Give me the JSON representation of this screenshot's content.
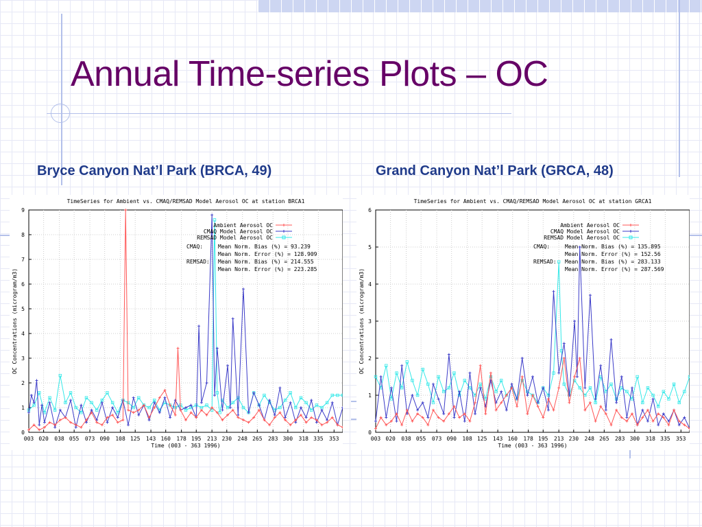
{
  "slide": {
    "title": "Annual Time-series Plots – OC"
  },
  "panels": {
    "left_label": "Bryce Canyon Nat’l Park (BRCA, 49)",
    "right_label": "Grand Canyon Nat’l Park (GRCA, 48)"
  },
  "colors": {
    "title": "#660066",
    "subtitle": "#1f3a8a",
    "ambient": "#ff5555",
    "cmaq": "#3a3ac8",
    "remsad": "#33e8e8",
    "grid": "#cccccc"
  },
  "chart_data": [
    {
      "type": "line",
      "title": "TimeSeries for Ambient vs. CMAQ/REMSAD Model Aerosol OC at station BRCA1",
      "xlabel": "Time    (003 - 363 1996)",
      "ylabel": "OC Concentrations (microgram/m3)",
      "xlim": [
        3,
        363
      ],
      "ylim": [
        0,
        9
      ],
      "y_ticks": [
        0,
        1,
        2,
        3,
        4,
        5,
        6,
        7,
        8,
        9
      ],
      "x_tick_labels": [
        "003",
        "020",
        "038",
        "055",
        "073",
        "090",
        "108",
        "125",
        "143",
        "160",
        "178",
        "195",
        "213",
        "230",
        "248",
        "265",
        "283",
        "300",
        "318",
        "335",
        "353"
      ],
      "grid": true,
      "legend_position": "top-right",
      "stats": [
        [
          "CMAQ:",
          "Mean Norm. Bias (%) = 93.239"
        ],
        [
          "",
          "Mean Norm. Error (%) = 128.909"
        ],
        [
          "REMSAD:",
          "Mean Norm. Bias (%) = 214.555"
        ],
        [
          "",
          "Mean Norm. Error (%) = 223.285"
        ]
      ],
      "series": [
        {
          "name": "Ambient Aerosol OC",
          "color": "#ff5555",
          "x": [
            3,
            9,
            15,
            21,
            27,
            33,
            39,
            45,
            51,
            57,
            63,
            69,
            75,
            81,
            87,
            93,
            99,
            105,
            111,
            114,
            117,
            123,
            129,
            135,
            141,
            147,
            153,
            159,
            165,
            171,
            174,
            177,
            183,
            189,
            195,
            201,
            207,
            213,
            219,
            225,
            231,
            237,
            243,
            249,
            255,
            261,
            267,
            273,
            279,
            285,
            291,
            297,
            303,
            309,
            315,
            321,
            327,
            333,
            339,
            345,
            351,
            357,
            363
          ],
          "y": [
            0.1,
            0.3,
            0.1,
            0.2,
            0.4,
            0.3,
            0.5,
            0.6,
            0.4,
            0.3,
            0.2,
            0.5,
            0.8,
            0.4,
            0.3,
            0.6,
            0.7,
            0.4,
            0.5,
            9.0,
            0.9,
            0.8,
            0.9,
            1.1,
            0.6,
            1.0,
            1.4,
            1.7,
            1.1,
            0.7,
            3.4,
            0.9,
            0.5,
            0.8,
            0.6,
            0.9,
            0.7,
            1.0,
            0.8,
            0.5,
            0.7,
            0.9,
            0.6,
            0.5,
            0.4,
            0.6,
            0.9,
            0.5,
            0.3,
            0.6,
            0.8,
            0.5,
            0.3,
            0.5,
            0.7,
            0.4,
            0.6,
            0.5,
            0.3,
            0.4,
            0.6,
            0.3,
            0.2
          ]
        },
        {
          "name": "CMAQ Model Aerosol OC",
          "color": "#3a3ac8",
          "x": [
            3,
            6,
            9,
            12,
            15,
            18,
            21,
            27,
            33,
            39,
            45,
            51,
            57,
            63,
            69,
            75,
            81,
            87,
            93,
            99,
            105,
            111,
            117,
            123,
            129,
            135,
            141,
            147,
            153,
            159,
            165,
            171,
            177,
            183,
            189,
            195,
            198,
            201,
            207,
            213,
            216,
            219,
            225,
            231,
            234,
            237,
            243,
            249,
            255,
            261,
            267,
            273,
            279,
            285,
            291,
            297,
            303,
            309,
            315,
            321,
            327,
            333,
            339,
            345,
            351,
            357,
            363
          ],
          "y": [
            0.8,
            1.5,
            1.2,
            2.1,
            0.3,
            1.1,
            0.4,
            1.2,
            0.2,
            0.9,
            0.6,
            1.3,
            0.2,
            1.1,
            0.4,
            0.9,
            0.5,
            1.2,
            0.4,
            1.0,
            0.6,
            1.3,
            0.3,
            1.4,
            0.7,
            1.1,
            0.5,
            1.2,
            0.8,
            1.4,
            0.6,
            1.3,
            0.9,
            1.0,
            1.1,
            0.6,
            4.3,
            1.2,
            2.0,
            8.8,
            1.5,
            3.4,
            0.9,
            2.7,
            1.0,
            4.6,
            0.7,
            5.8,
            0.8,
            1.6,
            1.1,
            0.5,
            1.3,
            0.7,
            1.8,
            0.6,
            1.2,
            0.4,
            1.0,
            0.6,
            1.3,
            0.4,
            0.9,
            0.5,
            1.2,
            0.3,
            1.0
          ]
        },
        {
          "name": "REMSAD Model Aerosol OC",
          "color": "#33e8e8",
          "x": [
            3,
            9,
            15,
            21,
            27,
            33,
            39,
            45,
            51,
            57,
            63,
            69,
            75,
            81,
            87,
            93,
            99,
            105,
            111,
            117,
            123,
            129,
            135,
            141,
            147,
            153,
            159,
            165,
            171,
            177,
            183,
            189,
            195,
            201,
            207,
            213,
            216,
            219,
            222,
            225,
            231,
            237,
            243,
            249,
            255,
            261,
            267,
            273,
            279,
            285,
            291,
            297,
            303,
            309,
            315,
            321,
            327,
            333,
            339,
            345,
            351,
            357,
            363
          ],
          "y": [
            0.9,
            1.1,
            1.6,
            0.8,
            1.4,
            0.9,
            2.3,
            1.2,
            1.6,
            1.0,
            0.8,
            1.4,
            1.2,
            0.9,
            1.3,
            1.6,
            1.2,
            0.8,
            1.3,
            1.2,
            1.0,
            1.4,
            1.1,
            1.0,
            1.3,
            0.9,
            1.2,
            1.1,
            1.0,
            1.1,
            0.9,
            1.0,
            1.1,
            1.0,
            1.1,
            0.9,
            8.6,
            1.6,
            0.8,
            1.3,
            1.0,
            1.2,
            1.4,
            1.0,
            0.8,
            1.6,
            1.1,
            1.5,
            1.2,
            0.9,
            1.0,
            1.3,
            1.6,
            1.0,
            1.4,
            1.2,
            0.9,
            1.1,
            1.0,
            1.2,
            1.5,
            1.5,
            1.5
          ]
        }
      ]
    },
    {
      "type": "line",
      "title": "TimeSeries for Ambient vs. CMAQ/REMSAD Model Aerosol OC at station GRCA1",
      "xlabel": "Time    (003 - 363 1996)",
      "ylabel": "OC Concentrations (microgram/m3)",
      "xlim": [
        3,
        363
      ],
      "ylim": [
        0,
        6
      ],
      "y_ticks": [
        0,
        1,
        2,
        3,
        4,
        5,
        6
      ],
      "x_tick_labels": [
        "003",
        "020",
        "038",
        "055",
        "073",
        "090",
        "108",
        "125",
        "143",
        "160",
        "178",
        "195",
        "213",
        "230",
        "248",
        "265",
        "283",
        "300",
        "318",
        "335",
        "353"
      ],
      "grid": true,
      "legend_position": "top-right",
      "stats": [
        [
          "CMAQ:",
          "Mean Norm. Bias (%) = 135.895"
        ],
        [
          "",
          "Mean Norm. Error (%) = 152.56"
        ],
        [
          "REMSAD:",
          "Mean Norm. Bias (%) = 283.133"
        ],
        [
          "",
          "Mean Norm. Error (%) = 287.569"
        ]
      ],
      "series": [
        {
          "name": "Ambient Aerosol OC",
          "color": "#ff5555",
          "x": [
            3,
            9,
            15,
            21,
            27,
            33,
            39,
            45,
            51,
            57,
            63,
            69,
            75,
            81,
            87,
            93,
            99,
            105,
            111,
            117,
            123,
            129,
            135,
            141,
            147,
            153,
            159,
            165,
            171,
            177,
            183,
            189,
            195,
            201,
            207,
            213,
            219,
            225,
            231,
            237,
            243,
            249,
            255,
            261,
            267,
            273,
            279,
            285,
            291,
            297,
            303,
            309,
            315,
            321,
            327,
            333,
            339,
            345,
            351,
            357,
            363
          ],
          "y": [
            0.1,
            0.4,
            0.2,
            0.3,
            0.5,
            0.2,
            0.6,
            0.3,
            0.5,
            0.4,
            0.2,
            0.6,
            0.4,
            0.3,
            0.5,
            0.7,
            0.4,
            0.5,
            0.3,
            0.8,
            1.8,
            0.5,
            1.6,
            0.6,
            0.8,
            1.0,
            1.2,
            0.7,
            1.5,
            0.5,
            1.0,
            0.7,
            0.4,
            0.9,
            0.6,
            1.2,
            2.0,
            0.8,
            1.5,
            2.0,
            0.6,
            0.8,
            0.3,
            0.7,
            0.5,
            0.2,
            0.6,
            0.4,
            0.3,
            0.5,
            0.2,
            0.4,
            0.6,
            0.3,
            0.5,
            0.4,
            0.2,
            0.6,
            0.3,
            0.2,
            0.1
          ]
        },
        {
          "name": "CMAQ Model Aerosol OC",
          "color": "#3a3ac8",
          "x": [
            3,
            9,
            15,
            21,
            27,
            33,
            39,
            45,
            51,
            57,
            63,
            69,
            75,
            81,
            87,
            93,
            99,
            105,
            111,
            117,
            123,
            129,
            135,
            141,
            147,
            153,
            159,
            165,
            171,
            177,
            183,
            189,
            195,
            201,
            207,
            213,
            219,
            225,
            231,
            234,
            237,
            243,
            249,
            255,
            261,
            267,
            273,
            279,
            285,
            291,
            297,
            303,
            309,
            315,
            321,
            327,
            333,
            339,
            345,
            351,
            357,
            363
          ],
          "y": [
            0.3,
            1.5,
            0.4,
            1.2,
            0.3,
            1.8,
            0.5,
            1.0,
            0.6,
            0.8,
            0.4,
            1.3,
            0.9,
            0.5,
            2.1,
            0.4,
            1.1,
            0.3,
            1.6,
            0.5,
            1.2,
            0.7,
            1.4,
            0.8,
            1.1,
            0.6,
            1.3,
            0.9,
            2.0,
            1.0,
            1.5,
            0.8,
            1.2,
            0.6,
            3.8,
            1.6,
            2.4,
            1.0,
            3.0,
            1.5,
            5.0,
            1.2,
            3.7,
            0.9,
            1.8,
            0.6,
            2.5,
            0.8,
            1.5,
            0.4,
            1.2,
            0.2,
            0.6,
            0.3,
            0.9,
            0.2,
            0.5,
            0.3,
            0.6,
            0.2,
            0.4,
            0.1
          ]
        },
        {
          "name": "REMSAD Model Aerosol OC",
          "color": "#33e8e8",
          "x": [
            3,
            9,
            15,
            21,
            27,
            33,
            39,
            45,
            51,
            57,
            63,
            69,
            75,
            81,
            87,
            93,
            99,
            105,
            111,
            117,
            123,
            129,
            135,
            141,
            147,
            153,
            159,
            165,
            171,
            177,
            183,
            189,
            195,
            201,
            207,
            213,
            216,
            219,
            225,
            231,
            237,
            243,
            249,
            255,
            261,
            267,
            273,
            279,
            285,
            291,
            297,
            303,
            309,
            315,
            321,
            327,
            333,
            339,
            345,
            351,
            357,
            363
          ],
          "y": [
            1.5,
            1.2,
            1.8,
            0.9,
            1.6,
            1.2,
            1.9,
            1.4,
            1.0,
            1.7,
            1.3,
            0.8,
            1.5,
            1.1,
            1.2,
            1.6,
            1.0,
            1.4,
            1.2,
            1.0,
            1.3,
            0.9,
            1.5,
            1.1,
            1.4,
            1.0,
            1.2,
            0.9,
            1.4,
            1.1,
            1.0,
            0.8,
            1.2,
            1.0,
            1.6,
            4.6,
            2.2,
            1.3,
            1.0,
            1.4,
            1.2,
            1.0,
            1.2,
            0.8,
            1.5,
            1.1,
            1.3,
            0.9,
            1.2,
            1.1,
            0.9,
            1.5,
            0.8,
            1.2,
            1.0,
            0.7,
            1.1,
            0.9,
            1.3,
            0.8,
            1.1,
            1.5
          ]
        }
      ]
    }
  ]
}
